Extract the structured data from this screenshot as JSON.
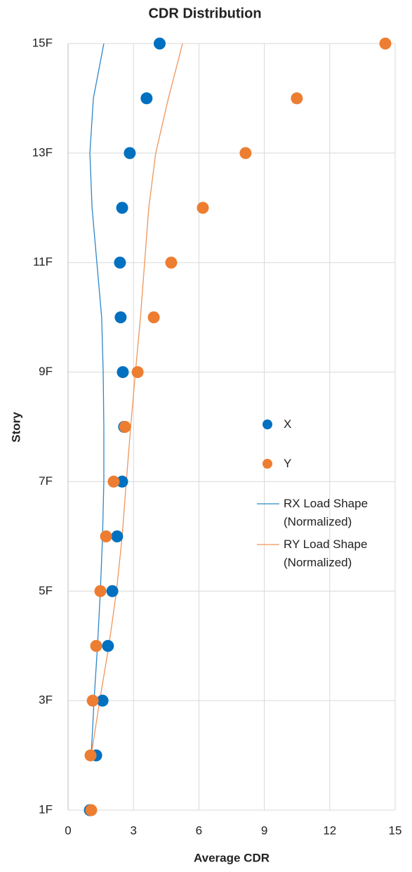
{
  "chart_data": {
    "type": "scatter",
    "title": "CDR Distribution",
    "x_label": "Average CDR",
    "y_label": "Story",
    "y": [
      1,
      2,
      3,
      4,
      5,
      6,
      7,
      8,
      9,
      10,
      11,
      12,
      13,
      14,
      15
    ],
    "series": [
      {
        "name": "X",
        "color": "#0070c0",
        "mode": "markers",
        "values": [
          1.0,
          1.29,
          1.58,
          1.83,
          2.03,
          2.25,
          2.48,
          2.57,
          2.51,
          2.41,
          2.38,
          2.48,
          2.83,
          3.6,
          4.2
        ]
      },
      {
        "name": "Y",
        "color": "#ed7d31",
        "mode": "markers",
        "values": [
          1.06,
          1.03,
          1.13,
          1.29,
          1.48,
          1.74,
          2.09,
          2.61,
          3.19,
          3.93,
          4.73,
          6.18,
          8.14,
          10.49,
          14.55
        ]
      },
      {
        "name": "RX Load Shape (Normalized)",
        "color": "#2e86c8",
        "mode": "lines",
        "values": [
          null,
          1.06,
          1.19,
          1.35,
          1.48,
          1.58,
          1.64,
          1.64,
          1.61,
          1.54,
          1.32,
          1.1,
          1.0,
          1.16,
          1.64
        ]
      },
      {
        "name": "RY Load Shape (Normalized)",
        "color": "#f0955a",
        "mode": "lines",
        "values": [
          null,
          1.06,
          1.45,
          1.87,
          2.22,
          2.48,
          2.67,
          2.87,
          3.09,
          3.32,
          3.51,
          3.7,
          4.02,
          4.6,
          5.25
        ]
      }
    ],
    "xlim": [
      0,
      15
    ],
    "xticks": [
      0,
      3,
      6,
      9,
      12,
      15
    ],
    "ylim": [
      1,
      15
    ],
    "yticks": [
      {
        "value": 1,
        "label": "1F"
      },
      {
        "value": 3,
        "label": "3F"
      },
      {
        "value": 5,
        "label": "5F"
      },
      {
        "value": 7,
        "label": "7F"
      },
      {
        "value": 9,
        "label": "9F"
      },
      {
        "value": 11,
        "label": "11F"
      },
      {
        "value": 13,
        "label": "13F"
      },
      {
        "value": 15,
        "label": "15F"
      }
    ],
    "grid": true,
    "legend": "right"
  }
}
